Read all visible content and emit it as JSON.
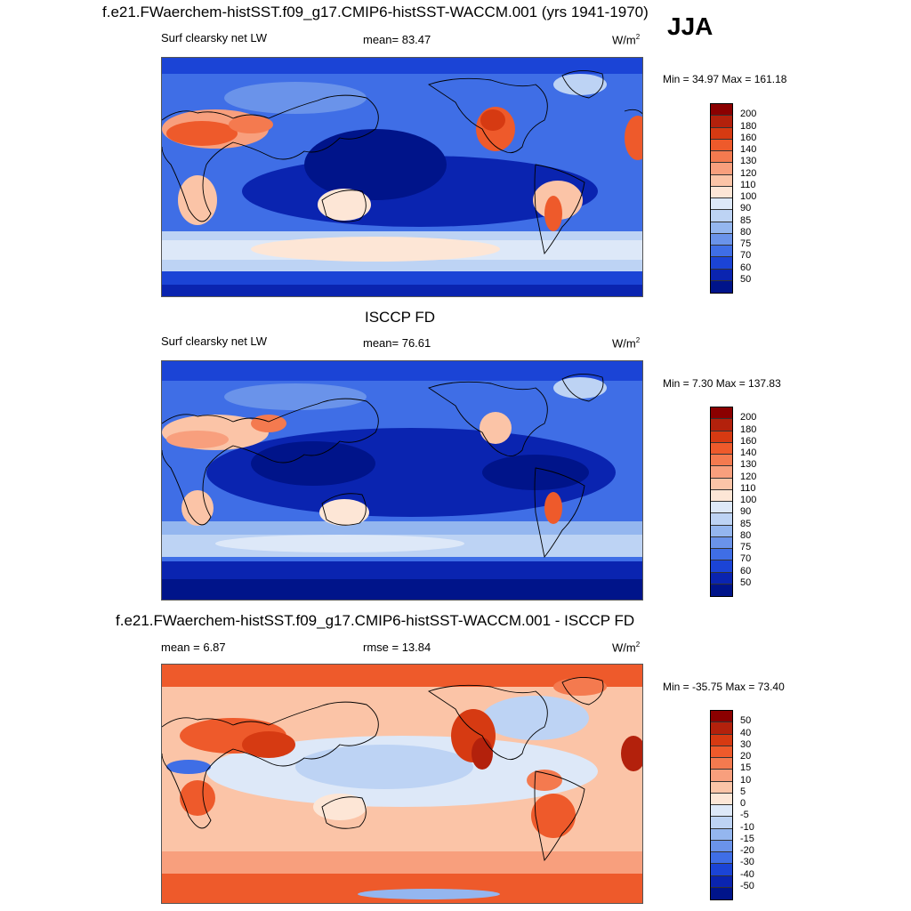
{
  "season": "JJA",
  "panels": [
    {
      "title": "f.e21.FWaerchem-histSST.f09_g17.CMIP6-histSST-WACCM.001 (yrs 1941-1970)",
      "left_label": "Surf clearsky net LW",
      "center_label": "mean=  83.47",
      "units": "W/m",
      "units_sup": "2",
      "minmax": "Min =  34.97 Max = 161.18"
    },
    {
      "title": "ISCCP FD",
      "left_label": "Surf clearsky net LW",
      "center_label": "mean=  76.61",
      "units": "W/m",
      "units_sup": "2",
      "minmax": "Min =   7.30 Max = 137.83"
    },
    {
      "title": "f.e21.FWaerchem-histSST.f09_g17.CMIP6-histSST-WACCM.001 - ISCCP FD",
      "left_label": "mean =   6.87",
      "center_label": "rmse =  13.84",
      "units": "W/m",
      "units_sup": "2",
      "minmax": "Min = -35.75 Max =  73.40"
    }
  ],
  "chart_data": [
    {
      "type": "heatmap",
      "title": "f.e21.FWaerchem-histSST.f09_g17.CMIP6-histSST-WACCM.001 (yrs 1941-1970)",
      "variable": "Surf clearsky net LW",
      "units": "W/m2",
      "mean": 83.47,
      "min": 34.97,
      "max": 161.18,
      "colorbar_levels": [
        "200",
        "180",
        "160",
        "140",
        "130",
        "120",
        "110",
        "100",
        "90",
        "85",
        "80",
        "75",
        "70",
        "60",
        "50"
      ],
      "colorbar_colors": [
        "#8b0000",
        "#b3210c",
        "#d63a12",
        "#ee5a2b",
        "#f47a4f",
        "#f89f7d",
        "#fbc4a7",
        "#fde6d6",
        "#dde8f8",
        "#bdd3f4",
        "#94b6ef",
        "#6a93ea",
        "#3f6ee6",
        "#1b44d6",
        "#0a24b0",
        "#00148a"
      ]
    },
    {
      "type": "heatmap",
      "title": "ISCCP FD",
      "variable": "Surf clearsky net LW",
      "units": "W/m2",
      "mean": 76.61,
      "min": 7.3,
      "max": 137.83,
      "colorbar_levels": [
        "200",
        "180",
        "160",
        "140",
        "130",
        "120",
        "110",
        "100",
        "90",
        "85",
        "80",
        "75",
        "70",
        "60",
        "50"
      ],
      "colorbar_colors": [
        "#8b0000",
        "#b3210c",
        "#d63a12",
        "#ee5a2b",
        "#f47a4f",
        "#f89f7d",
        "#fbc4a7",
        "#fde6d6",
        "#dde8f8",
        "#bdd3f4",
        "#94b6ef",
        "#6a93ea",
        "#3f6ee6",
        "#1b44d6",
        "#0a24b0",
        "#00148a"
      ]
    },
    {
      "type": "heatmap",
      "title": "f.e21.FWaerchem-histSST.f09_g17.CMIP6-histSST-WACCM.001 - ISCCP FD",
      "units": "W/m2",
      "mean": 6.87,
      "rmse": 13.84,
      "min": -35.75,
      "max": 73.4,
      "colorbar_levels": [
        "50",
        "40",
        "30",
        "20",
        "15",
        "10",
        "5",
        "0",
        "-5",
        "-10",
        "-15",
        "-20",
        "-30",
        "-40",
        "-50"
      ],
      "colorbar_colors": [
        "#8b0000",
        "#b3210c",
        "#d63a12",
        "#ee5a2b",
        "#f47a4f",
        "#f89f7d",
        "#fbc4a7",
        "#fde6d6",
        "#dde8f8",
        "#bdd3f4",
        "#94b6ef",
        "#6a93ea",
        "#3f6ee6",
        "#1b44d6",
        "#0a24b0",
        "#00148a"
      ]
    }
  ]
}
